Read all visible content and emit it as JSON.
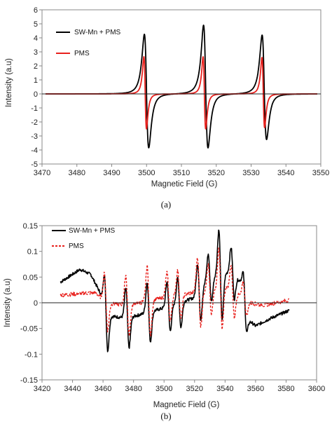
{
  "chart_data": [
    {
      "type": "line",
      "panel_label": "(a)",
      "xlabel": "Magnetic Field (G)",
      "ylabel": "Intensity (a.u)",
      "xlim": [
        3470,
        3550
      ],
      "ylim": [
        -5,
        6
      ],
      "xticks": [
        3470,
        3480,
        3490,
        3500,
        3510,
        3520,
        3530,
        3540,
        3550
      ],
      "yticks": [
        -5,
        -4,
        -3,
        -2,
        -1,
        0,
        1,
        2,
        3,
        4,
        5,
        6
      ],
      "grid": false,
      "legend_position": "top-left",
      "x_range_data": [
        3471,
        3549
      ],
      "series": [
        {
          "name": "SW-Mn + PMS",
          "color": "#000000",
          "style": "solid",
          "peaks": [
            {
              "center": 3500.0,
              "max": 4.25,
              "min": -3.85,
              "width": 1.1
            },
            {
              "center": 3517.0,
              "max": 4.9,
              "min": -3.85,
              "width": 1.1
            },
            {
              "center": 3533.8,
              "max": 4.2,
              "min": -3.25,
              "width": 1.1
            }
          ]
        },
        {
          "name": "PMS",
          "color": "#e8201c",
          "style": "solid",
          "peaks": [
            {
              "center": 3499.6,
              "max": 2.65,
              "min": -2.5,
              "width": 0.65
            },
            {
              "center": 3516.6,
              "max": 2.65,
              "min": -2.5,
              "width": 0.65
            },
            {
              "center": 3533.5,
              "max": 2.6,
              "min": -2.4,
              "width": 0.65
            }
          ]
        }
      ]
    },
    {
      "type": "line",
      "panel_label": "(b)",
      "xlabel": "Magnetic Field (G)",
      "ylabel": "Intensity (a.u)",
      "xlim": [
        3420,
        3600
      ],
      "ylim": [
        -0.15,
        0.15
      ],
      "xticks": [
        3420,
        3440,
        3460,
        3480,
        3500,
        3520,
        3540,
        3560,
        3580,
        3600
      ],
      "yticks": [
        -0.15,
        -0.1,
        -0.05,
        0,
        0.05,
        0.1,
        0.15
      ],
      "grid": false,
      "legend_position": "top-left",
      "x_range_data": [
        3432,
        3582
      ],
      "lines": [
        3462,
        3476,
        3490,
        3503,
        3510,
        3523,
        3530,
        3537,
        3545,
        3553
      ],
      "series": [
        {
          "name": "SW-Mn + PMS",
          "color": "#000000",
          "style": "solid",
          "baseline": {
            "x": [
              3432,
              3445,
              3452,
              3458,
              3462,
              3476,
              3500,
              3520,
              3530,
              3545,
              3550,
              3553,
              3556,
              3560,
              3570,
              3582
            ],
            "y": [
              0.04,
              0.065,
              0.055,
              0.02,
              -0.025,
              -0.03,
              -0.01,
              0.01,
              0.05,
              0.06,
              0.04,
              0.0,
              -0.035,
              -0.045,
              -0.03,
              -0.015
            ]
          },
          "amplitudes": [
            0.07,
            0.06,
            0.06,
            0.05,
            0.05,
            0.06,
            0.05,
            0.09,
            0.05,
            0.045
          ]
        },
        {
          "name": "PMS",
          "color": "#e8201c",
          "style": "dashed",
          "baseline": {
            "x": [
              3432,
              3455,
              3462,
              3476,
              3500,
              3520,
              3540,
              3552,
              3556,
              3565,
              3582
            ],
            "y": [
              0.015,
              0.02,
              0.0,
              -0.005,
              0.01,
              0.02,
              0.03,
              0.01,
              0.0,
              -0.005,
              0.005
            ]
          },
          "amplitudes": [
            0.055,
            0.06,
            0.07,
            0.05,
            0.05,
            0.07,
            0.05,
            0.08,
            0.05,
            0.03
          ]
        }
      ]
    }
  ]
}
